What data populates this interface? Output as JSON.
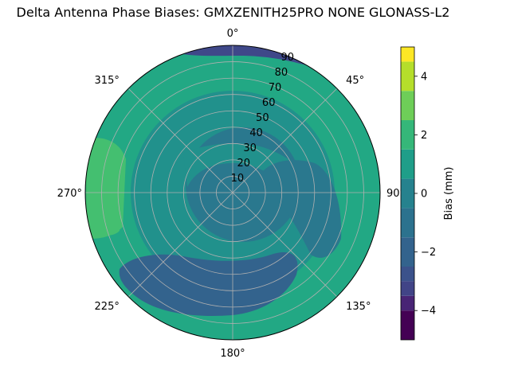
{
  "chart_data": {
    "type": "heatmap",
    "subtype": "polar-contour",
    "title": "Delta Antenna Phase Biases: GMXZENITH25PRO  NONE GLONASS-L2",
    "angular_ticks": [
      "0°",
      "45°",
      "90°",
      "135°",
      "180°",
      "225°",
      "270°",
      "315°"
    ],
    "radial_ticks": [
      "10",
      "20",
      "30",
      "40",
      "50",
      "60",
      "70",
      "80",
      "90"
    ],
    "radial_range": [
      0,
      90
    ],
    "grid": true,
    "colorbar": {
      "label": "Bias (mm)",
      "range": [
        -5,
        5
      ],
      "ticks": [
        "−4",
        "−2",
        "0",
        "2",
        "4"
      ],
      "levels": [
        -5,
        -4.375,
        -3.75,
        -3.125,
        -2.5,
        -1.875,
        -1.25,
        -0.625,
        0,
        0.625,
        1.25,
        1.875,
        2.5,
        3.125,
        3.75,
        4.375,
        5
      ],
      "colors": [
        "#440154",
        "#482374",
        "#3f4889",
        "#33638d",
        "#2a788e",
        "#21918c",
        "#22a884",
        "#44bf70",
        "#7ad151",
        "#bddf26",
        "#fde725"
      ]
    },
    "regions": [
      {
        "level": 0.3,
        "color": "#2a788e",
        "desc": "inner ring near zenith"
      },
      {
        "level": 1.0,
        "color": "#21918c",
        "desc": "mid ring"
      },
      {
        "level": -0.9,
        "color": "#33638d",
        "desc": "south-west low band at elevation 40-70"
      },
      {
        "level": 1.6,
        "color": "#22a884",
        "desc": "north and east outer band"
      },
      {
        "level": 2.3,
        "color": "#44bf70",
        "desc": "west edge near 270°"
      },
      {
        "level": -1.8,
        "color": "#3f4889",
        "desc": "north rim near 0-30°"
      }
    ]
  }
}
